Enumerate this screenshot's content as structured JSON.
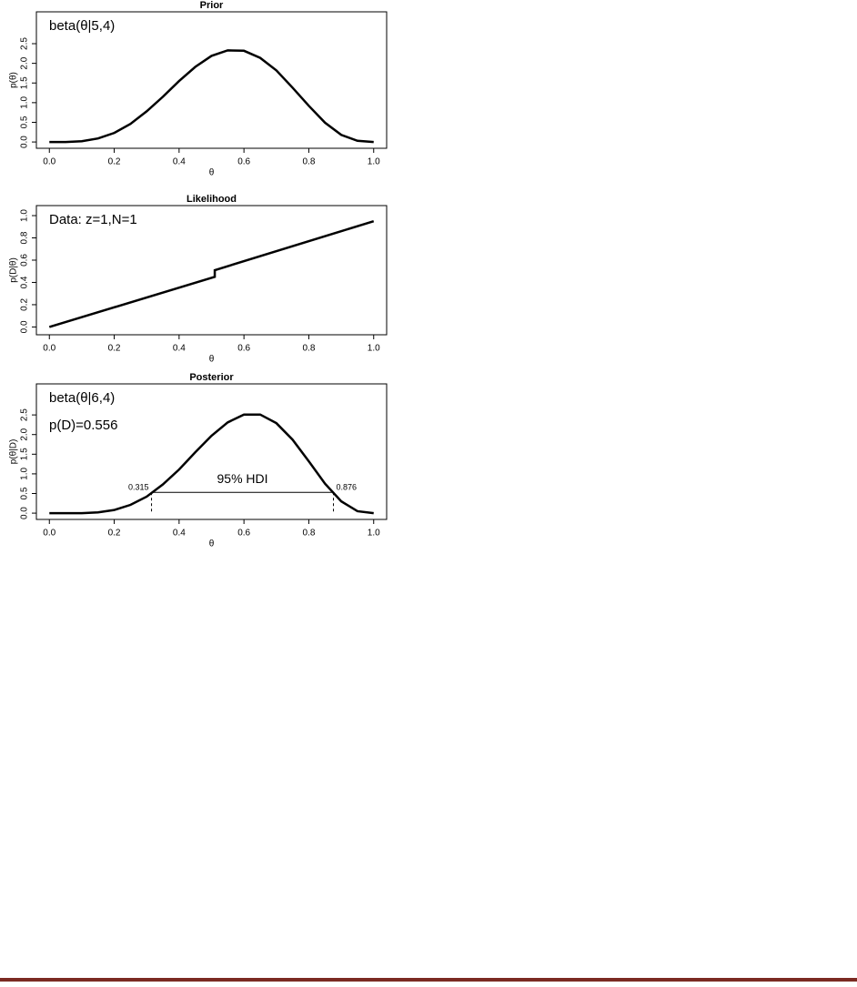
{
  "chart_data": [
    {
      "type": "line",
      "title": "Prior",
      "xlabel": "θ",
      "ylabel": "p(θ)",
      "annotations": [
        "beta(θ|5,4)"
      ],
      "x": [
        0,
        0.05,
        0.1,
        0.15,
        0.2,
        0.25,
        0.3,
        0.35,
        0.4,
        0.45,
        0.5,
        0.55,
        0.6,
        0.65,
        0.7,
        0.75,
        0.8,
        0.85,
        0.9,
        0.95,
        1
      ],
      "values": [
        0,
        0,
        0.02,
        0.09,
        0.23,
        0.46,
        0.78,
        1.15,
        1.55,
        1.91,
        2.19,
        2.33,
        2.32,
        2.14,
        1.82,
        1.38,
        0.92,
        0.49,
        0.18,
        0.03,
        0
      ],
      "color": "#000000",
      "xlim": [
        -0.04,
        1.04
      ],
      "ylim": [
        -0.16,
        3.31
      ],
      "xticks": [
        {
          "value": 0,
          "label": "0.0"
        },
        0.2,
        0.4,
        0.6,
        0.8,
        {
          "value": 1,
          "label": "1.0"
        }
      ],
      "yticks": [
        {
          "value": 0,
          "label": "0.0"
        },
        0.5,
        {
          "value": 1,
          "label": "1.0"
        },
        1.5,
        {
          "value": 2,
          "label": "2.0"
        },
        2.5
      ]
    },
    {
      "type": "line",
      "title": "Likelihood",
      "xlabel": "θ",
      "ylabel": "p(D|θ)",
      "annotations": [
        "Data: z=1,N=1"
      ],
      "x": [
        0,
        0.51,
        0.51,
        1
      ],
      "values": [
        0,
        0.45,
        0.51,
        0.95
      ],
      "color": "#000000",
      "xlim": [
        -0.04,
        1.04
      ],
      "ylim": [
        -0.07,
        1.09
      ],
      "xticks": [
        {
          "value": 0,
          "label": "0.0"
        },
        0.2,
        0.4,
        0.6,
        0.8,
        {
          "value": 1,
          "label": "1.0"
        }
      ],
      "yticks": [
        {
          "value": 0,
          "label": "0.0"
        },
        0.2,
        0.4,
        0.6,
        0.8,
        {
          "value": 1,
          "label": "1.0"
        }
      ]
    },
    {
      "type": "line",
      "title": "Posterior",
      "xlabel": "θ",
      "ylabel": "p(θ|D)",
      "annotations": [
        "beta(θ|6,4)",
        "p(D)=0.556"
      ],
      "x": [
        0,
        0.05,
        0.1,
        0.15,
        0.2,
        0.25,
        0.3,
        0.35,
        0.4,
        0.45,
        0.5,
        0.55,
        0.6,
        0.65,
        0.7,
        0.75,
        0.8,
        0.85,
        0.9,
        0.95,
        1
      ],
      "values": [
        0,
        0,
        0,
        0.02,
        0.08,
        0.21,
        0.42,
        0.73,
        1.11,
        1.55,
        1.97,
        2.31,
        2.51,
        2.51,
        2.29,
        1.87,
        1.32,
        0.75,
        0.3,
        0.05,
        0
      ],
      "color": "#000000",
      "hdi": {
        "label": "95% HDI",
        "limits": [
          0.315,
          0.876
        ],
        "height": 0.53
      },
      "xlim": [
        -0.04,
        1.04
      ],
      "ylim": [
        -0.16,
        3.29
      ],
      "xticks": [
        {
          "value": 0,
          "label": "0.0"
        },
        0.2,
        0.4,
        0.6,
        0.8,
        {
          "value": 1,
          "label": "1.0"
        }
      ],
      "yticks": [
        {
          "value": 0,
          "label": "0.0"
        },
        0.5,
        {
          "value": 1,
          "label": "1.0"
        },
        1.5,
        {
          "value": 2,
          "label": "2.0"
        },
        2.5
      ]
    }
  ]
}
